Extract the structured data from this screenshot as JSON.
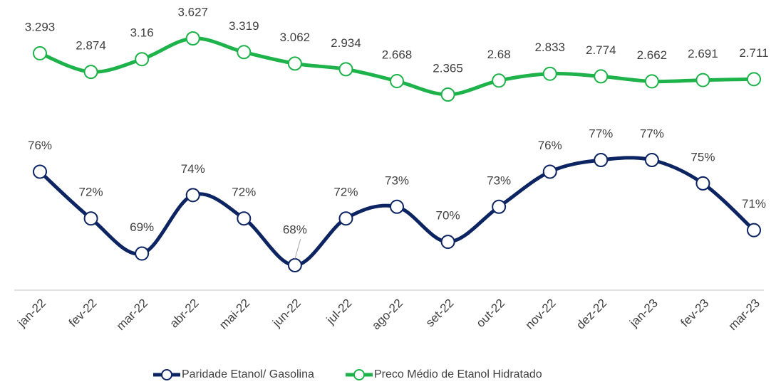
{
  "chart_data": {
    "type": "line",
    "categories": [
      "jan-22",
      "fev-22",
      "mar-22",
      "abr-22",
      "mai-22",
      "jun-22",
      "jul-22",
      "ago-22",
      "set-22",
      "out-22",
      "nov-22",
      "dez-22",
      "jan-23",
      "fev-23",
      "mar-23"
    ],
    "series": [
      {
        "name": "Paridade Etanol/ Gasolina",
        "color": "#0d2462",
        "values": [
          76,
          72,
          69,
          74,
          72,
          68,
          72,
          73,
          70,
          73,
          76,
          77,
          77,
          75,
          71
        ],
        "value_labels": [
          "76%",
          "72%",
          "69%",
          "74%",
          "72%",
          "68%",
          "72%",
          "73%",
          "70%",
          "73%",
          "76%",
          "77%",
          "77%",
          "75%",
          "71%"
        ]
      },
      {
        "name": "Preco Médio de Etanol Hidratado",
        "color": "#1db34a",
        "values": [
          3.293,
          2.874,
          3.16,
          3.627,
          3.319,
          3.062,
          2.934,
          2.668,
          2.365,
          2.68,
          2.833,
          2.774,
          2.662,
          2.691,
          2.711
        ]
      }
    ]
  }
}
